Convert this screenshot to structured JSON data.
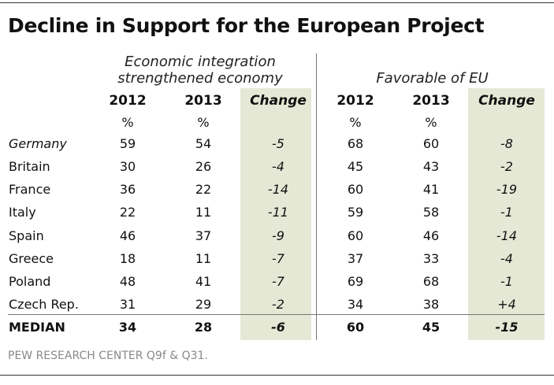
{
  "title": "Decline in Support for the European Project",
  "source": "PEW RESEARCH CENTER Q9f & Q31.",
  "groups": [
    {
      "label_line1": "Economic integration",
      "label_line2": "strengthened economy"
    },
    {
      "label_line1": "Favorable of EU",
      "label_line2": ""
    }
  ],
  "column_headers": [
    "2012",
    "2013",
    "Change",
    "2012",
    "2013",
    "Change"
  ],
  "unit_row": [
    "%",
    "%",
    "",
    "%",
    "%",
    ""
  ],
  "chart_data": {
    "type": "table",
    "title": "Decline in Support for the European Project",
    "column_groups": [
      "Economic integration strengthened economy",
      "Favorable of EU"
    ],
    "columns": [
      "2012",
      "2013",
      "Change",
      "2012",
      "2013",
      "Change"
    ],
    "rows": [
      {
        "label": "Germany",
        "values": [
          "59",
          "54",
          "-5",
          "68",
          "60",
          "-8"
        ]
      },
      {
        "label": "Britain",
        "values": [
          "30",
          "26",
          "-4",
          "45",
          "43",
          "-2"
        ]
      },
      {
        "label": "France",
        "values": [
          "36",
          "22",
          "-14",
          "60",
          "41",
          "-19"
        ]
      },
      {
        "label": "Italy",
        "values": [
          "22",
          "11",
          "-11",
          "59",
          "58",
          "-1"
        ]
      },
      {
        "label": "Spain",
        "values": [
          "46",
          "37",
          "-9",
          "60",
          "46",
          "-14"
        ]
      },
      {
        "label": "Greece",
        "values": [
          "18",
          "11",
          "-7",
          "37",
          "33",
          "-4"
        ]
      },
      {
        "label": "Poland",
        "values": [
          "48",
          "41",
          "-7",
          "69",
          "68",
          "-1"
        ]
      },
      {
        "label": "Czech Rep.",
        "values": [
          "31",
          "29",
          "-2",
          "34",
          "38",
          "+4"
        ]
      }
    ],
    "summary_row": {
      "label": "MEDIAN",
      "values": [
        "34",
        "28",
        "-6",
        "60",
        "45",
        "-15"
      ]
    }
  },
  "colors": {
    "change_column_shade": "#e6e8d6",
    "rule": "#333333",
    "source_text": "#888888"
  }
}
